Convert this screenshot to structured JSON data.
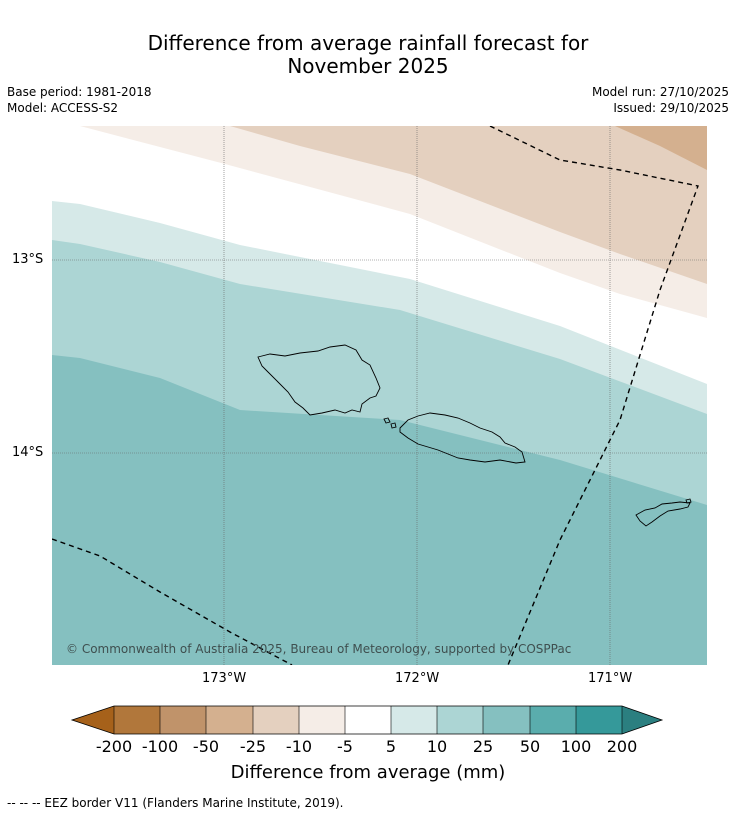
{
  "title": {
    "line1": "Difference from average rainfall forecast for",
    "line2": "November 2025"
  },
  "meta": {
    "base_period": "Base period: 1981-2018",
    "model": "Model: ACCESS-S2",
    "model_run": "Model run: 27/10/2025",
    "issued": "Issued: 29/10/2025"
  },
  "axes": {
    "y_ticks": [
      "13°S",
      "14°S"
    ],
    "x_ticks": [
      "173°W",
      "172°W",
      "171°W"
    ]
  },
  "copyright": "© Commonwealth of Australia 2025, Bureau of Meteorology, supported by COSPPac",
  "colorbar": {
    "title": "Difference from average (mm)",
    "ticks": [
      "-200",
      "-100",
      "-50",
      "-25",
      "-10",
      "-5",
      "5",
      "10",
      "25",
      "50",
      "100",
      "200"
    ],
    "colors": [
      "#a6611a",
      "#b1773b",
      "#c0936a",
      "#d4b08f",
      "#e4d0bf",
      "#f5ede7",
      "#ffffff",
      "#d6e9e8",
      "#acd5d4",
      "#85c0c0",
      "#5aadad",
      "#35999a",
      "#2b7f80"
    ]
  },
  "footnote": "--  --  -- EEZ border V11 (Flanders Marine Institute, 2019)."
}
